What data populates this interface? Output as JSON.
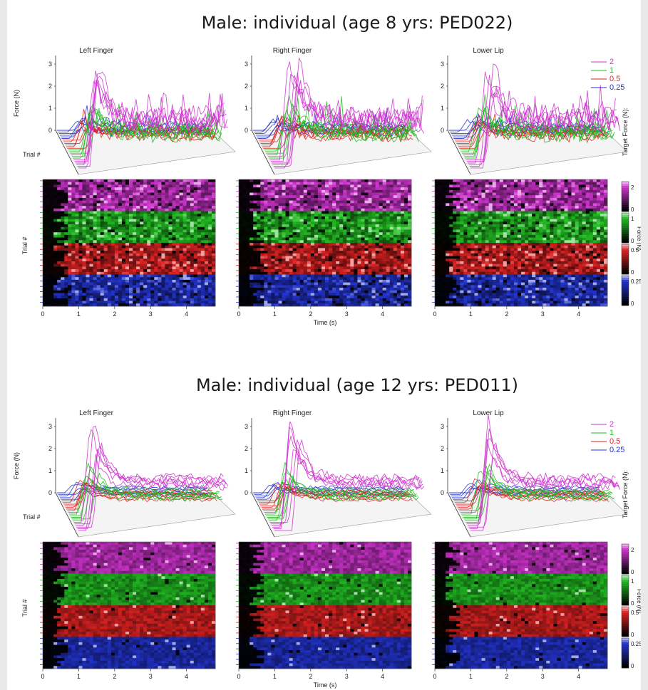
{
  "figure": {
    "sections": [
      {
        "title": "Male: individual (age 8 yrs: PED022)",
        "panels": [
          "Left Finger",
          "Right Finger",
          "Lower Lip"
        ],
        "noise": 1.0
      },
      {
        "title": "Male: individual (age 12 yrs: PED011)",
        "panels": [
          "Left Finger",
          "Right Finger",
          "Lower Lip"
        ],
        "noise": 0.45
      }
    ],
    "ylabel_top": "Force (N)",
    "trial_label": "Trial #",
    "time_label": "Time (s)",
    "legend_title": "Target Force (N):",
    "colorbar_label": "Force (N)"
  },
  "chart_data": [
    {
      "type": "line",
      "title": "Male: individual (age 8 yrs: PED022)",
      "subplots": [
        "Left Finger",
        "Right Finger",
        "Lower Lip"
      ],
      "ylabel": "Force (N)",
      "zlabel": "Trial #",
      "yticks": [
        "0",
        "1",
        "2",
        "3"
      ],
      "ylim": [
        0,
        3
      ],
      "series": [
        {
          "name": "2",
          "color": "#cc33cc",
          "target": 2
        },
        {
          "name": "1",
          "color": "#22bb22",
          "target": 1
        },
        {
          "name": "0.5",
          "color": "#dd2222",
          "target": 0.5
        },
        {
          "name": "0.25",
          "color": "#2233cc",
          "target": 0.25
        }
      ]
    },
    {
      "type": "heatmap",
      "title": "Male: individual (age 8 yrs: PED022)",
      "subplots": [
        "Left Finger",
        "Right Finger",
        "Lower Lip"
      ],
      "xlabel": "Time (s)",
      "ylabel": "Trial #",
      "xticks": [
        "0",
        "1",
        "2",
        "3",
        "4"
      ],
      "xlim": [
        0,
        4.8
      ],
      "colorbars": [
        {
          "color": "#cc33cc",
          "ticks": [
            "0",
            "2"
          ],
          "range": [
            0,
            2.8
          ]
        },
        {
          "color": "#22bb22",
          "ticks": [
            "0",
            "1"
          ],
          "range": [
            0,
            1.4
          ]
        },
        {
          "color": "#dd2222",
          "ticks": [
            "0",
            "0.5"
          ],
          "range": [
            0,
            0.7
          ]
        },
        {
          "color": "#2233cc",
          "ticks": [
            "0",
            "0.25"
          ],
          "range": [
            0,
            0.35
          ]
        }
      ]
    },
    {
      "type": "line",
      "title": "Male: individual (age 12 yrs: PED011)",
      "subplots": [
        "Left Finger",
        "Right Finger",
        "Lower Lip"
      ],
      "ylabel": "Force (N)",
      "zlabel": "Trial #",
      "yticks": [
        "0",
        "1",
        "2",
        "3"
      ],
      "ylim": [
        0,
        3
      ],
      "series": [
        {
          "name": "2",
          "color": "#cc33cc",
          "target": 2
        },
        {
          "name": "1",
          "color": "#22bb22",
          "target": 1
        },
        {
          "name": "0.5",
          "color": "#dd2222",
          "target": 0.5
        },
        {
          "name": "0.25",
          "color": "#2233cc",
          "target": 0.25
        }
      ]
    },
    {
      "type": "heatmap",
      "title": "Male: individual (age 12 yrs: PED011)",
      "subplots": [
        "Left Finger",
        "Right Finger",
        "Lower Lip"
      ],
      "xlabel": "Time (s)",
      "ylabel": "Trial #",
      "xticks": [
        "0",
        "1",
        "2",
        "3",
        "4"
      ],
      "xlim": [
        0,
        4.8
      ],
      "colorbars": [
        {
          "color": "#cc33cc",
          "ticks": [
            "0",
            "2"
          ],
          "range": [
            0,
            2.8
          ]
        },
        {
          "color": "#22bb22",
          "ticks": [
            "0",
            "1"
          ],
          "range": [
            0,
            1.4
          ]
        },
        {
          "color": "#dd2222",
          "ticks": [
            "0",
            "0.5"
          ],
          "range": [
            0,
            0.7
          ]
        },
        {
          "color": "#2233cc",
          "ticks": [
            "0",
            "0.25"
          ],
          "range": [
            0,
            0.35
          ]
        }
      ]
    }
  ]
}
